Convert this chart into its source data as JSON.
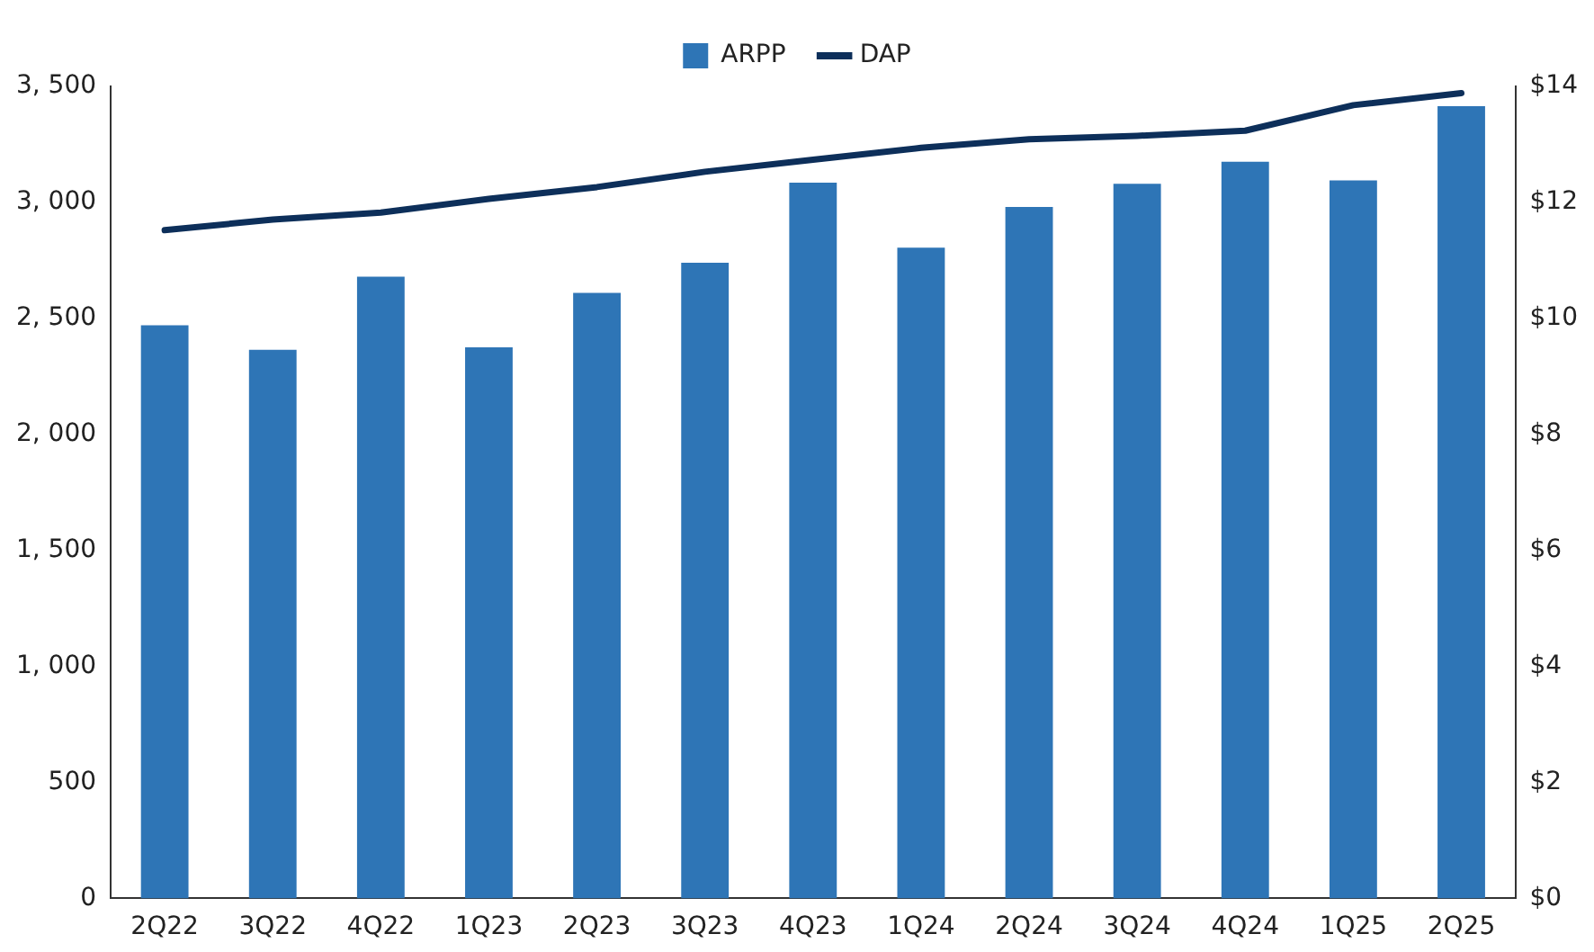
{
  "chart_data": {
    "type": "bar",
    "categories": [
      "2Q22",
      "3Q22",
      "4Q22",
      "1Q23",
      "2Q23",
      "3Q23",
      "4Q23",
      "1Q24",
      "2Q24",
      "3Q24",
      "4Q24",
      "1Q25",
      "2Q25"
    ],
    "series": [
      {
        "name": "ARPP",
        "axis": "y2",
        "color": "#2e75b6",
        "values": [
          9.88,
          9.46,
          10.72,
          9.5,
          10.44,
          10.96,
          12.34,
          11.22,
          11.92,
          12.32,
          12.7,
          12.38,
          13.66
        ]
      },
      {
        "name": "DAP",
        "type": "line",
        "axis": "y",
        "color": "#0d2f5a",
        "values": [
          2880,
          2926,
          2956,
          3015,
          3066,
          3132,
          3184,
          3235,
          3272,
          3287,
          3309,
          3419,
          3471
        ]
      }
    ],
    "ylim": [
      0,
      3500
    ],
    "yticks": [
      0,
      500,
      {
        "value": 1000,
        "label": "1, 000"
      },
      {
        "value": 1500,
        "label": "1, 500"
      },
      {
        "value": 2000,
        "label": "2, 000"
      },
      {
        "value": 2500,
        "label": "2, 500"
      },
      {
        "value": 3000,
        "label": "3, 000"
      },
      {
        "value": 3500,
        "label": "3, 500"
      }
    ],
    "y2lim": [
      0,
      14
    ],
    "y2ticks": [
      {
        "value": 0,
        "label": "$0"
      },
      {
        "value": 2,
        "label": "$2"
      },
      {
        "value": 4,
        "label": "$4"
      },
      {
        "value": 6,
        "label": "$6"
      },
      {
        "value": 8,
        "label": "$8"
      },
      {
        "value": 10,
        "label": "$10"
      },
      {
        "value": 12,
        "label": "$12"
      },
      {
        "value": 14,
        "label": "$14"
      }
    ],
    "legend": "top",
    "grid": false,
    "marker": "none",
    "line_style": "solid"
  }
}
